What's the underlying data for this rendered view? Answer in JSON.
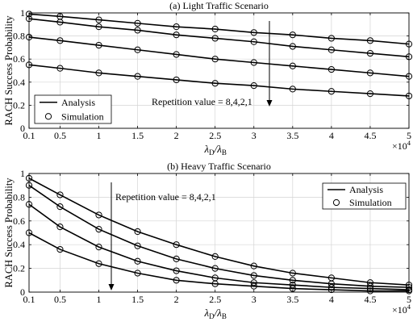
{
  "chart_data": [
    {
      "type": "line",
      "title": "(a) Light Traffic Scenario",
      "ylabel": "RACH Success Probability",
      "xlabel_main": "λ",
      "xlabel_sub1": "D",
      "xlabel_sub2": "B",
      "x_multiplier_base": "×10",
      "x_multiplier_exp": "4",
      "x": [
        0.1,
        0.5,
        1,
        1.5,
        2,
        2.5,
        3,
        3.5,
        4,
        4.5,
        5
      ],
      "x_tick_labels": [
        "0.1",
        "0.5",
        "1",
        "1.5",
        "2",
        "2.5",
        "3",
        "3.5",
        "4",
        "4.5",
        "5"
      ],
      "xlim": [
        0.1,
        5
      ],
      "ylim": [
        0,
        1
      ],
      "y_ticks": [
        0,
        0.2,
        0.4,
        0.6,
        0.8,
        1
      ],
      "y_tick_labels": [
        "0",
        "0.2",
        "0.4",
        "0.6",
        "0.8",
        "1"
      ],
      "grid": true,
      "legend": {
        "placement": "bottom-left",
        "entries": [
          "Analysis",
          "Simulation"
        ]
      },
      "annotation": "Repetition value = 8,4,2,1",
      "series": [
        {
          "values": [
            0.99,
            0.97,
            0.94,
            0.91,
            0.88,
            0.86,
            0.83,
            0.81,
            0.78,
            0.76,
            0.73
          ]
        },
        {
          "values": [
            0.95,
            0.92,
            0.88,
            0.85,
            0.81,
            0.78,
            0.75,
            0.71,
            0.68,
            0.65,
            0.62
          ]
        },
        {
          "values": [
            0.79,
            0.76,
            0.72,
            0.68,
            0.64,
            0.6,
            0.57,
            0.54,
            0.51,
            0.48,
            0.45
          ]
        },
        {
          "values": [
            0.55,
            0.52,
            0.48,
            0.45,
            0.42,
            0.39,
            0.37,
            0.34,
            0.32,
            0.3,
            0.28
          ]
        }
      ]
    },
    {
      "type": "line",
      "title": "(b) Heavy Traffic Scenario",
      "ylabel": "RACH Success Probability",
      "xlabel_main": "λ",
      "xlabel_sub1": "D",
      "xlabel_sub2": "B",
      "x_multiplier_base": "×10",
      "x_multiplier_exp": "4",
      "x": [
        0.1,
        0.5,
        1,
        1.5,
        2,
        2.5,
        3,
        3.5,
        4,
        4.5,
        5
      ],
      "x_tick_labels": [
        "0.1",
        "0.5",
        "1",
        "1.5",
        "2",
        "2.5",
        "3",
        "3.5",
        "4",
        "4.5",
        "5"
      ],
      "xlim": [
        0.1,
        5
      ],
      "ylim": [
        0,
        1
      ],
      "y_ticks": [
        0,
        0.2,
        0.4,
        0.6,
        0.8,
        1
      ],
      "y_tick_labels": [
        "0",
        "0.2",
        "0.4",
        "0.6",
        "0.8",
        "1"
      ],
      "grid": true,
      "legend": {
        "placement": "top-right",
        "entries": [
          "Analysis",
          "Simulation"
        ]
      },
      "annotation": "Repetition value = 8,4,2,1",
      "series": [
        {
          "values": [
            0.96,
            0.82,
            0.65,
            0.51,
            0.4,
            0.3,
            0.22,
            0.16,
            0.12,
            0.08,
            0.06
          ]
        },
        {
          "values": [
            0.9,
            0.72,
            0.53,
            0.39,
            0.28,
            0.2,
            0.14,
            0.1,
            0.07,
            0.05,
            0.04
          ]
        },
        {
          "values": [
            0.74,
            0.55,
            0.38,
            0.26,
            0.18,
            0.12,
            0.08,
            0.06,
            0.04,
            0.03,
            0.02
          ]
        },
        {
          "values": [
            0.5,
            0.36,
            0.24,
            0.16,
            0.1,
            0.07,
            0.05,
            0.03,
            0.02,
            0.01,
            0.01
          ]
        }
      ]
    }
  ]
}
